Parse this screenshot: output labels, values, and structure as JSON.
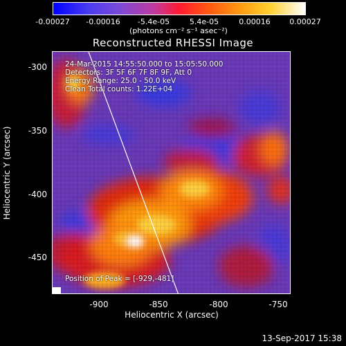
{
  "colorbar": {
    "ticks": [
      "-0.00027",
      "-0.00016",
      "-5.4e-05",
      "5.4e-05",
      "0.00016",
      "0.00027"
    ],
    "units": "(photons cm⁻² s⁻¹ asec⁻²)"
  },
  "chart_data": {
    "type": "heatmap",
    "title": "Reconstructed RHESSI Image",
    "xlabel": "Heliocentric X (arcsec)",
    "ylabel": "Heliocentric Y (arcsec)",
    "xlim": [
      -940,
      -740
    ],
    "ylim": [
      -481,
      -288
    ],
    "x_ticks": [
      "-900",
      "-850",
      "-800",
      "-750"
    ],
    "y_ticks": [
      "-300",
      "-350",
      "-400",
      "-450"
    ],
    "colorbar_range": [
      -0.00027,
      0.00027
    ],
    "peak": [
      -929,
      -481
    ],
    "limb": [
      [
        -930,
        -288
      ],
      [
        -838,
        -481
      ]
    ],
    "info_lines": [
      "24-Mar-2015 14:55:50.000 to 15:05:50.000",
      "Detectors: 3F 5F 6F 7F 8F 9F, Att 0",
      "Energy Range: 25.0 - 50.0 keV",
      "Clean    Total counts: 1.22E+04"
    ],
    "peak_label": "Position of Peak = [-929,-481]"
  },
  "footer": {
    "date": "13-Sep-2017 15:38"
  }
}
